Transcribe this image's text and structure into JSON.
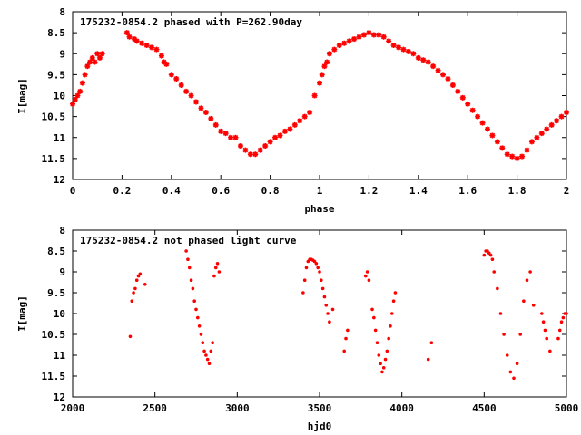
{
  "chart_data": [
    {
      "type": "scatter",
      "title": "175232-0854.2 phased with P=262.90day",
      "xlabel": "phase",
      "ylabel": "I[mag]",
      "xlim": [
        0,
        2
      ],
      "ylim": [
        8,
        12
      ],
      "y_inverted": true,
      "xticks": [
        "0",
        "0.2",
        "0.4",
        "0.6",
        "0.8",
        "1",
        "1.2",
        "1.4",
        "1.6",
        "1.8",
        "2"
      ],
      "yticks": [
        "8",
        "8.5",
        "9",
        "9.5",
        "10",
        "10.5",
        "11",
        "11.5",
        "12"
      ],
      "marker_color": "#ff0000",
      "grid": false,
      "series": [
        {
          "x": [
            0.0,
            0.01,
            0.02,
            0.03,
            0.04,
            0.05,
            0.06,
            0.07,
            0.08,
            0.09,
            0.1,
            0.11,
            0.12,
            0.22,
            0.23,
            0.25,
            0.26,
            0.28,
            0.3,
            0.32,
            0.34,
            0.36,
            0.37,
            0.38,
            0.4,
            0.42,
            0.44,
            0.46,
            0.48,
            0.5,
            0.52,
            0.54,
            0.56,
            0.58,
            0.6,
            0.62,
            0.64,
            0.66,
            0.68,
            0.7,
            0.72,
            0.74,
            0.76,
            0.78,
            0.8,
            0.82,
            0.84,
            0.86,
            0.88,
            0.9,
            0.92,
            0.94,
            0.96,
            0.98,
            1.0,
            1.01,
            1.02,
            1.03,
            1.04,
            1.06,
            1.08,
            1.1,
            1.12,
            1.14,
            1.16,
            1.18,
            1.2,
            1.22,
            1.24,
            1.26,
            1.28,
            1.3,
            1.32,
            1.34,
            1.36,
            1.38,
            1.4,
            1.42,
            1.44,
            1.46,
            1.48,
            1.5,
            1.52,
            1.54,
            1.56,
            1.58,
            1.6,
            1.62,
            1.64,
            1.66,
            1.68,
            1.7,
            1.72,
            1.74,
            1.76,
            1.78,
            1.8,
            1.82,
            1.84,
            1.86,
            1.88,
            1.9,
            1.92,
            1.94,
            1.96,
            1.98,
            2.0
          ],
          "y": [
            10.2,
            10.1,
            10.0,
            9.9,
            9.7,
            9.5,
            9.3,
            9.2,
            9.1,
            9.2,
            9.0,
            9.1,
            9.0,
            8.5,
            8.6,
            8.65,
            8.7,
            8.75,
            8.8,
            8.85,
            8.9,
            9.05,
            9.2,
            9.25,
            9.5,
            9.6,
            9.75,
            9.9,
            10.0,
            10.15,
            10.3,
            10.4,
            10.55,
            10.7,
            10.85,
            10.9,
            11.0,
            11.0,
            11.2,
            11.3,
            11.4,
            11.4,
            11.3,
            11.2,
            11.1,
            11.0,
            10.95,
            10.85,
            10.8,
            10.7,
            10.6,
            10.5,
            10.4,
            10.0,
            9.7,
            9.5,
            9.3,
            9.2,
            9.0,
            8.9,
            8.8,
            8.75,
            8.7,
            8.65,
            8.6,
            8.55,
            8.5,
            8.55,
            8.55,
            8.6,
            8.7,
            8.8,
            8.85,
            8.9,
            8.95,
            9.0,
            9.1,
            9.15,
            9.2,
            9.3,
            9.4,
            9.5,
            9.6,
            9.75,
            9.9,
            10.05,
            10.2,
            10.35,
            10.5,
            10.65,
            10.8,
            10.95,
            11.1,
            11.25,
            11.4,
            11.45,
            11.5,
            11.45,
            11.3,
            11.1,
            11.0,
            10.9,
            10.8,
            10.7,
            10.6,
            10.5,
            10.4
          ]
        }
      ]
    },
    {
      "type": "scatter",
      "title": "175232-0854.2 not phased light curve",
      "xlabel": "hjd0",
      "ylabel": "I[mag]",
      "xlim": [
        2000,
        5000
      ],
      "ylim": [
        8,
        12
      ],
      "y_inverted": true,
      "xticks": [
        "2000",
        "2500",
        "3000",
        "3500",
        "4000",
        "4500",
        "5000"
      ],
      "yticks": [
        "8",
        "8.5",
        "9",
        "9.5",
        "10",
        "10.5",
        "11",
        "11.5",
        "12"
      ],
      "marker_color": "#ff0000",
      "grid": false,
      "series": [
        {
          "x": [
            2350,
            2360,
            2370,
            2380,
            2390,
            2400,
            2410,
            2440,
            2690,
            2700,
            2710,
            2720,
            2730,
            2740,
            2750,
            2760,
            2770,
            2780,
            2790,
            2800,
            2810,
            2820,
            2830,
            2840,
            2850,
            2860,
            2870,
            2880,
            2890,
            3400,
            3410,
            3420,
            3430,
            3440,
            3450,
            3460,
            3470,
            3480,
            3490,
            3500,
            3510,
            3520,
            3530,
            3540,
            3550,
            3560,
            3580,
            3650,
            3660,
            3670,
            3780,
            3790,
            3800,
            3820,
            3830,
            3840,
            3850,
            3860,
            3870,
            3880,
            3890,
            3900,
            3910,
            3920,
            3930,
            3940,
            3950,
            3960,
            4160,
            4180,
            4500,
            4510,
            4520,
            4530,
            4540,
            4550,
            4560,
            4580,
            4600,
            4620,
            4640,
            4660,
            4680,
            4700,
            4720,
            4740,
            4760,
            4780,
            4800,
            4850,
            4860,
            4870,
            4880,
            4900,
            4950,
            4960,
            4970,
            4980,
            4990,
            5000
          ],
          "y": [
            10.55,
            9.7,
            9.5,
            9.4,
            9.2,
            9.1,
            9.05,
            9.3,
            8.5,
            8.7,
            8.9,
            9.2,
            9.4,
            9.7,
            9.9,
            10.1,
            10.3,
            10.5,
            10.7,
            10.9,
            11.0,
            11.1,
            11.2,
            10.9,
            10.7,
            9.1,
            8.9,
            8.8,
            9.0,
            9.5,
            9.2,
            8.9,
            8.75,
            8.7,
            8.7,
            8.72,
            8.75,
            8.8,
            8.9,
            9.0,
            9.2,
            9.4,
            9.6,
            9.8,
            10.0,
            10.2,
            9.9,
            10.9,
            10.6,
            10.4,
            9.1,
            9.0,
            9.2,
            9.9,
            10.1,
            10.4,
            10.7,
            11.0,
            11.2,
            11.4,
            11.3,
            11.1,
            10.9,
            10.6,
            10.3,
            10.0,
            9.7,
            9.5,
            11.1,
            10.7,
            8.6,
            8.5,
            8.5,
            8.55,
            8.6,
            8.7,
            9.0,
            9.4,
            10.0,
            10.5,
            11.0,
            11.4,
            11.55,
            11.2,
            10.5,
            9.7,
            9.2,
            9.0,
            9.8,
            10.0,
            10.2,
            10.4,
            10.6,
            10.9,
            10.6,
            10.4,
            10.2,
            10.1,
            10.0,
            10.0
          ]
        }
      ]
    }
  ]
}
